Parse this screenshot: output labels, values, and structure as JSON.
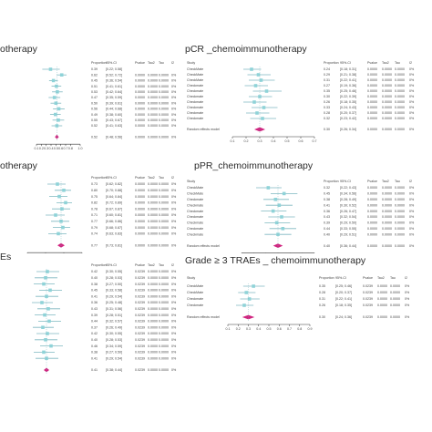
{
  "panels": [
    {
      "id": "p1",
      "title": "otherapy",
      "headers": [
        "Proportion",
        "95%-CI",
        "Pvalue",
        "Tau2",
        "Tau",
        "I2"
      ],
      "study_labels": [],
      "rows": [
        [
          "0.39",
          "[0.22; 0.58]",
          "",
          "",
          "",
          ""
        ],
        [
          "0.62",
          "[0.52; 0.72]",
          "0.0000",
          "0.0000",
          "0.0000",
          "0%"
        ],
        [
          "0.45",
          "[0.36; 0.54]",
          "0.0000",
          "0.0000",
          "0.0000",
          "0%"
        ],
        [
          "0.51",
          "[0.41; 0.61]",
          "0.0000",
          "0.0000",
          "0.0000",
          "0%"
        ],
        [
          "0.53",
          "[0.42; 0.64]",
          "0.0000",
          "0.0000",
          "0.0000",
          "0%"
        ],
        [
          "0.47",
          "[0.35; 0.59]",
          "0.0000",
          "0.0000",
          "0.0000",
          "0%"
        ],
        [
          "0.50",
          "[0.39; 0.61]",
          "0.0000",
          "0.0000",
          "0.0000",
          "0%"
        ],
        [
          "0.56",
          "[0.44; 0.68]",
          "0.0000",
          "0.0000",
          "0.0000",
          "0%"
        ],
        [
          "0.49",
          "[0.38; 0.60]",
          "0.0000",
          "0.0000",
          "0.0000",
          "0%"
        ],
        [
          "0.55",
          "[0.43; 0.67]",
          "0.0000",
          "0.0000",
          "0.0000",
          "0%"
        ],
        [
          "0.52",
          "[0.41; 0.63]",
          "0.0000",
          "0.0000",
          "0.0000",
          "0%"
        ]
      ],
      "summary": [
        "0.52",
        "[0.48; 0.56]",
        "0.0000",
        "0.0000",
        "0.0000",
        "0%"
      ],
      "axis_ticks": [
        "0.1",
        "0.2",
        "0.3",
        "0.4",
        "0.5",
        "0.6",
        "0.7",
        "0.8",
        "1.0"
      ]
    },
    {
      "id": "p2",
      "title": "pCR _chemoimmunotherapy",
      "headers": [
        "Study",
        "Proportion",
        "95%-CI",
        "Pvalue",
        "Tau2",
        "Tau",
        "I2"
      ],
      "study_labels": [
        "CheckMate",
        "CheckMate",
        "CheckMate",
        "Checkmate",
        "Checkmate",
        "Checkmate",
        "Checkmate",
        "Checkmate",
        "Checkmate",
        "Checkmate"
      ],
      "rows": [
        [
          "0.24",
          "[0.18; 0.31]",
          "0.0000",
          "0.0000",
          "0.0000",
          "0%"
        ],
        [
          "0.29",
          "[0.21; 0.38]",
          "0.0000",
          "0.0000",
          "0.0000",
          "0%"
        ],
        [
          "0.31",
          "[0.22; 0.41]",
          "0.0000",
          "0.0000",
          "0.0000",
          "0%"
        ],
        [
          "0.27",
          "[0.19; 0.36]",
          "0.0000",
          "0.0000",
          "0.0000",
          "0%"
        ],
        [
          "0.35",
          "[0.25; 0.46]",
          "0.0000",
          "0.0000",
          "0.0000",
          "0%"
        ],
        [
          "0.30",
          "[0.22; 0.39]",
          "0.0000",
          "0.0000",
          "0.0000",
          "0%"
        ],
        [
          "0.26",
          "[0.18; 0.35]",
          "0.0000",
          "0.0000",
          "0.0000",
          "0%"
        ],
        [
          "0.33",
          "[0.24; 0.43]",
          "0.0000",
          "0.0000",
          "0.0000",
          "0%"
        ],
        [
          "0.28",
          "[0.20; 0.37]",
          "0.0000",
          "0.0000",
          "0.0000",
          "0%"
        ],
        [
          "0.32",
          "[0.23; 0.42]",
          "0.0000",
          "0.0000",
          "0.0000",
          "0%"
        ]
      ],
      "summary_label": "Random effects model",
      "summary": [
        "0.30",
        "[0.26; 0.34]",
        "0.0000",
        "0.0000",
        "0.0000",
        "0%"
      ],
      "axis_ticks": [
        "0.1",
        "0.2",
        "0.3",
        "0.4",
        "0.5",
        "0.6",
        "0.7"
      ]
    },
    {
      "id": "p3",
      "title": "otherapy",
      "headers": [
        "Proportion",
        "95%-CI",
        "Pvalue",
        "Tau2",
        "Tau",
        "I2"
      ],
      "study_labels": [],
      "rows": [
        [
          "0.73",
          "[0.62; 0.82]",
          "0.0000",
          "0.0000",
          "0.0000",
          "0%"
        ],
        [
          "0.80",
          "[0.70; 0.88]",
          "0.0000",
          "0.0000",
          "0.0000",
          "0%"
        ],
        [
          "0.75",
          "[0.64; 0.84]",
          "0.0000",
          "0.0000",
          "0.0000",
          "0%"
        ],
        [
          "0.82",
          "[0.72; 0.89]",
          "0.0000",
          "0.0000",
          "0.0000",
          "0%"
        ],
        [
          "0.78",
          "[0.67; 0.87]",
          "0.0000",
          "0.0000",
          "0.0000",
          "0%"
        ],
        [
          "0.71",
          "[0.60; 0.81]",
          "0.0000",
          "0.0000",
          "0.0000",
          "0%"
        ],
        [
          "0.77",
          "[0.66; 0.86]",
          "0.0000",
          "0.0000",
          "0.0000",
          "0%"
        ],
        [
          "0.79",
          "[0.68; 0.87]",
          "0.0000",
          "0.0000",
          "0.0000",
          "0%"
        ],
        [
          "0.74",
          "[0.63; 0.83]",
          "0.0000",
          "0.0000",
          "0.0000",
          "0%"
        ]
      ],
      "summary": [
        "0.77",
        "[0.73; 0.81]",
        "0.0000",
        "0.0000",
        "0.0000",
        "0%"
      ],
      "axis_ticks": [
        "0.4",
        "0.6",
        "0.8",
        "1.0"
      ]
    },
    {
      "id": "p4",
      "title": "pPR_chemoimmunotherapy",
      "headers": [
        "Study",
        "Proportion",
        "95%-CI",
        "Pvalue",
        "Tau2",
        "Tau",
        "I2"
      ],
      "study_labels": [
        "CheckMate",
        "CheckMate",
        "Checkmate",
        "Checkmate",
        "Checkmate",
        "Checkmate",
        "Checkmate",
        "Checkmate",
        "Checkmate"
      ],
      "rows": [
        [
          "0.32",
          "[0.22; 0.43]",
          "0.0000",
          "0.0000",
          "0.0000",
          "0%"
        ],
        [
          "0.45",
          "[0.34; 0.56]",
          "0.0000",
          "0.0000",
          "0.0000",
          "0%"
        ],
        [
          "0.38",
          "[0.28; 0.49]",
          "0.0000",
          "0.0000",
          "0.0000",
          "0%"
        ],
        [
          "0.41",
          "[0.30; 0.52]",
          "0.0000",
          "0.0000",
          "0.0000",
          "0%"
        ],
        [
          "0.36",
          "[0.26; 0.47]",
          "0.0000",
          "0.0000",
          "0.0000",
          "0%"
        ],
        [
          "0.43",
          "[0.32; 0.54]",
          "0.0000",
          "0.0000",
          "0.0000",
          "0%"
        ],
        [
          "0.39",
          "[0.29; 0.50]",
          "0.0000",
          "0.0000",
          "0.0000",
          "0%"
        ],
        [
          "0.44",
          "[0.33; 0.55]",
          "0.0000",
          "0.0000",
          "0.0000",
          "0%"
        ],
        [
          "0.40",
          "[0.29; 0.51]",
          "0.0000",
          "0.0000",
          "0.0000",
          "0%"
        ]
      ],
      "summary_label": "Random effects model",
      "summary": [
        "0.40",
        "[0.36; 0.44]",
        "0.0000",
        "0.0000",
        "0.0000",
        "0%"
      ],
      "axis_ticks": [
        "0.1",
        "0.2",
        "0.3",
        "0.4",
        "0.5",
        "0.6",
        "0.7"
      ]
    },
    {
      "id": "p5",
      "title": "Es",
      "headers": [
        "Proportion",
        "95%-CI",
        "Pvalue",
        "Tau2",
        "Tau",
        "I2"
      ],
      "study_labels": [],
      "rows": [
        [
          "0.42",
          "[0.30; 0.55]",
          "0.0239",
          "0.0000",
          "0.0000",
          "0%"
        ],
        [
          "0.40",
          "[0.28; 0.53]",
          "0.0239",
          "0.0000",
          "0.0000",
          "0%"
        ],
        [
          "0.38",
          "[0.27; 0.50]",
          "0.0239",
          "0.0000",
          "0.0000",
          "0%"
        ],
        [
          "0.45",
          "[0.33; 0.58]",
          "0.0239",
          "0.0000",
          "0.0000",
          "0%"
        ],
        [
          "0.41",
          "[0.29; 0.54]",
          "0.0239",
          "0.0000",
          "0.0000",
          "0%"
        ],
        [
          "0.36",
          "[0.25; 0.48]",
          "0.0239",
          "0.0000",
          "0.0000",
          "0%"
        ],
        [
          "0.43",
          "[0.31; 0.56]",
          "0.0239",
          "0.0000",
          "0.0000",
          "0%"
        ],
        [
          "0.39",
          "[0.28; 0.51]",
          "0.0239",
          "0.0000",
          "0.0000",
          "0%"
        ],
        [
          "0.44",
          "[0.32; 0.57]",
          "0.0239",
          "0.0000",
          "0.0000",
          "0%"
        ],
        [
          "0.37",
          "[0.26; 0.49]",
          "0.0239",
          "0.0000",
          "0.0000",
          "0%"
        ],
        [
          "0.42",
          "[0.30; 0.55]",
          "0.0239",
          "0.0000",
          "0.0000",
          "0%"
        ],
        [
          "0.40",
          "[0.28; 0.53]",
          "0.0239",
          "0.0000",
          "0.0000",
          "0%"
        ],
        [
          "0.46",
          "[0.34; 0.59]",
          "0.0239",
          "0.0000",
          "0.0000",
          "0%"
        ],
        [
          "0.38",
          "[0.27; 0.50]",
          "0.0239",
          "0.0000",
          "0.0000",
          "0%"
        ],
        [
          "0.41",
          "[0.29; 0.54]",
          "0.0239",
          "0.0000",
          "0.0000",
          "0%"
        ]
      ],
      "summary": [
        "0.41",
        "[0.38; 0.44]",
        "0.0239",
        "0.0000",
        "0.0000",
        "0%"
      ],
      "axis_ticks": [
        "0.2",
        "0.4",
        "0.6",
        "0.8"
      ]
    },
    {
      "id": "p6",
      "title": "Grade ≥ 3 TRAEs _ chemoimmunotherapy",
      "headers": [
        "Study",
        "Proportion",
        "95%-CI",
        "Pvalue",
        "Tau2",
        "Tau",
        "I2"
      ],
      "study_labels": [
        "CheckMate",
        "CheckMate",
        "Checkmate",
        "Checkmate"
      ],
      "rows": [
        [
          "0.35",
          "[0.25; 0.46]",
          "0.0239",
          "0.0000",
          "0.0000",
          "0%"
        ],
        [
          "0.28",
          "[0.20; 0.37]",
          "0.0239",
          "0.0000",
          "0.0000",
          "0%"
        ],
        [
          "0.31",
          "[0.22; 0.41]",
          "0.0239",
          "0.0000",
          "0.0000",
          "0%"
        ],
        [
          "0.26",
          "[0.18; 0.35]",
          "0.0239",
          "0.0000",
          "0.0000",
          "0%"
        ]
      ],
      "summary_label": "Random effects model",
      "summary": [
        "0.30",
        "[0.24; 0.36]",
        "0.0239",
        "0.0000",
        "0.0000",
        "0%"
      ],
      "axis_ticks": [
        "0.1",
        "0.2",
        "0.3",
        "0.4",
        "0.5",
        "0.6",
        "0.7",
        "0.8",
        "0.9"
      ]
    }
  ],
  "colors": {
    "point": "#8fd3d8",
    "line": "#7fb8c0",
    "summary": "#d0247f",
    "axis": "#333333",
    "text": "#444444"
  }
}
